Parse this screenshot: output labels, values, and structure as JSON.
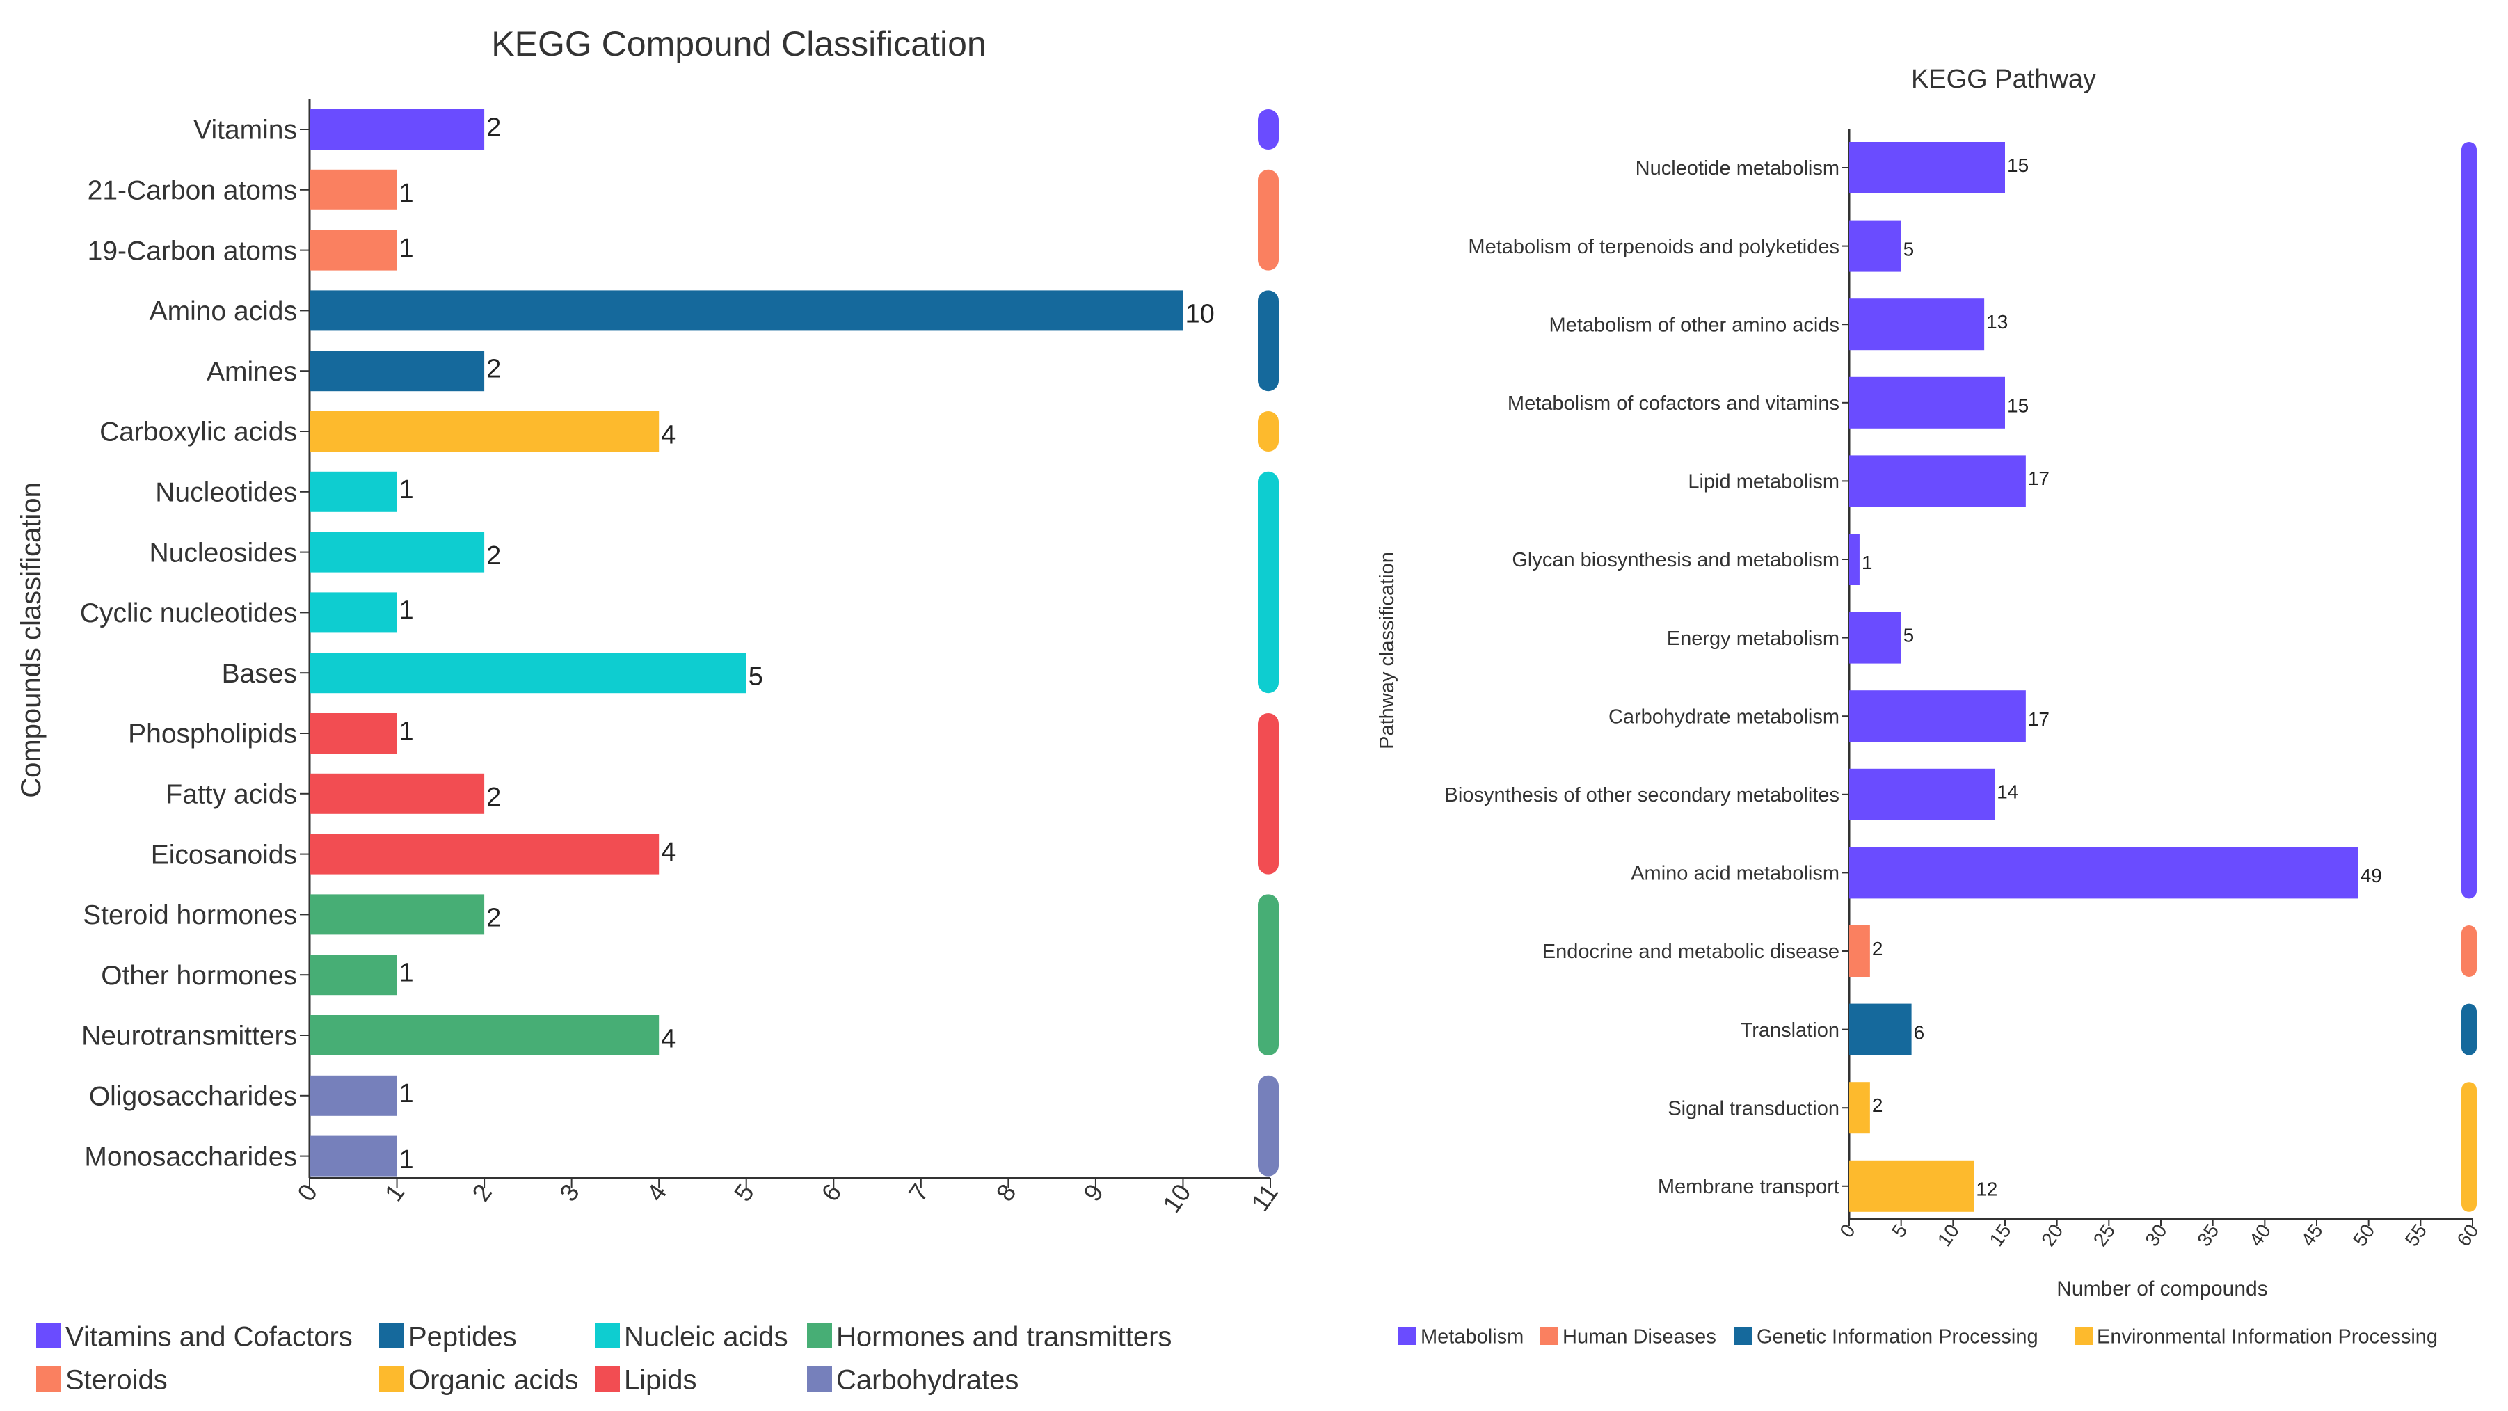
{
  "chart_data": [
    {
      "type": "bar",
      "orientation": "horizontal",
      "title": "KEGG Compound Classification",
      "xlabel": "",
      "ylabel": "Compounds classification",
      "xlim": [
        0,
        11
      ],
      "ticks": [
        "0",
        "1",
        "2",
        "3",
        "4",
        "5",
        "6",
        "7",
        "8",
        "9",
        "10",
        "11"
      ],
      "categories": [
        "Vitamins",
        "21-Carbon atoms",
        "19-Carbon atoms",
        "Amino acids",
        "Amines",
        "Carboxylic acids",
        "Nucleotides",
        "Nucleosides",
        "Cyclic nucleotides",
        "Bases",
        "Phospholipids",
        "Fatty acids",
        "Eicosanoids",
        "Steroid hormones",
        "Other hormones",
        "Neurotransmitters",
        "Oligosaccharides",
        "Monosaccharides"
      ],
      "values": [
        2,
        1,
        1,
        10,
        2,
        4,
        1,
        2,
        1,
        5,
        1,
        2,
        4,
        2,
        1,
        4,
        1,
        1
      ],
      "value_labels": [
        "2",
        "1",
        "1",
        "10",
        "2",
        "4",
        "1",
        "2",
        "1",
        "5",
        "1",
        "2",
        "4",
        "2",
        "1",
        "4",
        "1",
        "1"
      ],
      "groups": [
        0,
        1,
        1,
        2,
        2,
        3,
        4,
        4,
        4,
        4,
        5,
        5,
        5,
        6,
        6,
        6,
        7,
        7
      ],
      "legend": [
        {
          "name": "Vitamins and Cofactors",
          "color": "#6a4cff"
        },
        {
          "name": "Steroids",
          "color": "#fa8060"
        },
        {
          "name": "Peptides",
          "color": "#15699c"
        },
        {
          "name": "Organic acids",
          "color": "#fdba2d"
        },
        {
          "name": "Nucleic acids",
          "color": "#0ecdd0"
        },
        {
          "name": "Lipids",
          "color": "#f24d52"
        },
        {
          "name": "Hormones and transmitters",
          "color": "#47ae75"
        },
        {
          "name": "Carbohydrates",
          "color": "#7680bb"
        }
      ]
    },
    {
      "type": "bar",
      "orientation": "horizontal",
      "title": "KEGG Pathway",
      "xlabel": "Number of compounds",
      "ylabel": "Pathway classification",
      "xlim": [
        0,
        60
      ],
      "ticks": [
        "0",
        "5",
        "10",
        "15",
        "20",
        "25",
        "30",
        "35",
        "40",
        "45",
        "50",
        "55",
        "60"
      ],
      "categories": [
        "Nucleotide metabolism",
        "Metabolism of terpenoids and polyketides",
        "Metabolism of other amino acids",
        "Metabolism of cofactors and vitamins",
        "Lipid metabolism",
        "Glycan biosynthesis and metabolism",
        "Energy metabolism",
        "Carbohydrate metabolism",
        "Biosynthesis of other secondary metabolites",
        "Amino acid metabolism",
        "Endocrine and metabolic disease",
        "Translation",
        "Signal transduction",
        "Membrane transport"
      ],
      "values": [
        15,
        5,
        13,
        15,
        17,
        1,
        5,
        17,
        14,
        49,
        2,
        6,
        2,
        12
      ],
      "value_labels": [
        "15",
        "5",
        "13",
        "15",
        "17",
        "1",
        "5",
        "17",
        "14",
        "49",
        "2",
        "6",
        "2",
        "12"
      ],
      "groups": [
        0,
        0,
        0,
        0,
        0,
        0,
        0,
        0,
        0,
        0,
        1,
        2,
        3,
        3
      ],
      "legend": [
        {
          "name": "Metabolism",
          "color": "#6a4cff"
        },
        {
          "name": "Human Diseases",
          "color": "#fa8060"
        },
        {
          "name": "Genetic Information Processing",
          "color": "#15699c"
        },
        {
          "name": "Environmental Information Processing",
          "color": "#fdba2d"
        }
      ]
    }
  ]
}
